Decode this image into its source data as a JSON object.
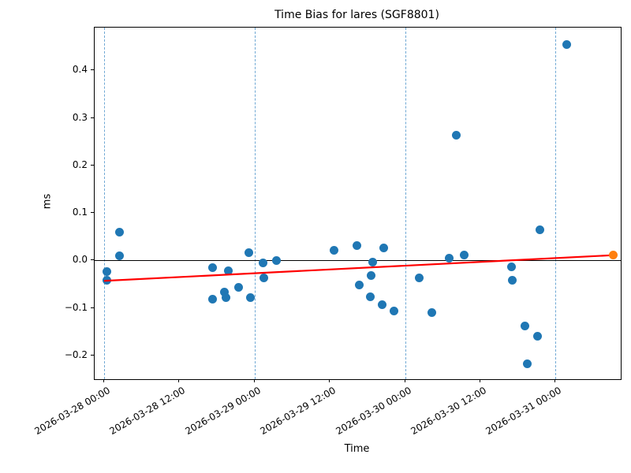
{
  "chart_data": {
    "type": "scatter",
    "title": "Time Bias for lares (SGF8801)",
    "xlabel": "Time",
    "ylabel": "ms",
    "x_axis": {
      "lim_hours": [
        -1.5,
        82.4
      ],
      "tick_times": [
        "2026-03-28 00:00",
        "2026-03-28 12:00",
        "2026-03-29 00:00",
        "2026-03-29 12:00",
        "2026-03-30 00:00",
        "2026-03-30 12:00",
        "2026-03-31 00:00"
      ]
    },
    "y_axis": {
      "lim": [
        -0.25,
        0.49
      ],
      "ticks": [
        {
          "v": -0.2,
          "label": "−0.2"
        },
        {
          "v": -0.1,
          "label": "−0.1"
        },
        {
          "v": 0.0,
          "label": "0.0"
        },
        {
          "v": 0.1,
          "label": "0.1"
        },
        {
          "v": 0.2,
          "label": "0.2"
        },
        {
          "v": 0.3,
          "label": "0.3"
        },
        {
          "v": 0.4,
          "label": "0.4"
        }
      ]
    },
    "gridlines_vertical_times": [
      "2026-03-28 00:00",
      "2026-03-29 00:00",
      "2026-03-30 00:00",
      "2026-03-31 00:00"
    ],
    "zero_line_value": 0.0,
    "colors": {
      "marker": "#1f77b4",
      "highlight": "#ff7f0e",
      "trend": "#ff0000",
      "grid": "#6fa8d4",
      "zero_line": "#000000"
    },
    "series": [
      {
        "name": "time-bias-points",
        "type": "scatter",
        "color": "#1f77b4",
        "points": [
          [
            "2026-03-28 00:30",
            -0.024
          ],
          [
            "2026-03-28 00:30",
            -0.041
          ],
          [
            "2026-03-28 02:24",
            0.059
          ],
          [
            "2026-03-28 02:24",
            0.009
          ],
          [
            "2026-03-28 17:15",
            -0.016
          ],
          [
            "2026-03-28 17:22",
            -0.082
          ],
          [
            "2026-03-28 19:15",
            -0.066
          ],
          [
            "2026-03-28 19:24",
            -0.079
          ],
          [
            "2026-03-28 19:53",
            -0.022
          ],
          [
            "2026-03-28 21:31",
            -0.057
          ],
          [
            "2026-03-28 23:02",
            0.017
          ],
          [
            "2026-03-28 23:17",
            -0.079
          ],
          [
            "2026-03-29 01:18",
            -0.006
          ],
          [
            "2026-03-29 01:26",
            -0.036
          ],
          [
            "2026-03-29 03:26",
            -0.001
          ],
          [
            "2026-03-29 12:38",
            0.022
          ],
          [
            "2026-03-29 16:17",
            0.032
          ],
          [
            "2026-03-29 16:40",
            -0.052
          ],
          [
            "2026-03-29 18:25",
            -0.077
          ],
          [
            "2026-03-29 18:32",
            -0.032
          ],
          [
            "2026-03-29 18:48",
            -0.004
          ],
          [
            "2026-03-29 20:18",
            -0.094
          ],
          [
            "2026-03-29 20:34",
            0.027
          ],
          [
            "2026-03-29 22:12",
            -0.107
          ],
          [
            "2026-03-30 02:13",
            -0.036
          ],
          [
            "2026-03-30 04:14",
            -0.11
          ],
          [
            "2026-03-30 07:00",
            0.004
          ],
          [
            "2026-03-30 08:08",
            0.263
          ],
          [
            "2026-03-30 09:24",
            0.011
          ],
          [
            "2026-03-30 16:57",
            -0.014
          ],
          [
            "2026-03-30 17:04",
            -0.041
          ],
          [
            "2026-03-30 19:06",
            -0.138
          ],
          [
            "2026-03-30 19:28",
            -0.218
          ],
          [
            "2026-03-30 21:06",
            -0.16
          ],
          [
            "2026-03-30 21:29",
            0.064
          ],
          [
            "2026-03-31 01:46",
            0.454
          ]
        ]
      },
      {
        "name": "latest-point",
        "type": "scatter",
        "color": "#ff7f0e",
        "points": [
          [
            "2026-03-31 09:15",
            0.011
          ]
        ]
      },
      {
        "name": "trend-line",
        "type": "line",
        "color": "#ff0000",
        "points": [
          [
            "2026-03-28 00:00",
            -0.043
          ],
          [
            "2026-03-31 09:15",
            0.011
          ]
        ]
      }
    ]
  }
}
